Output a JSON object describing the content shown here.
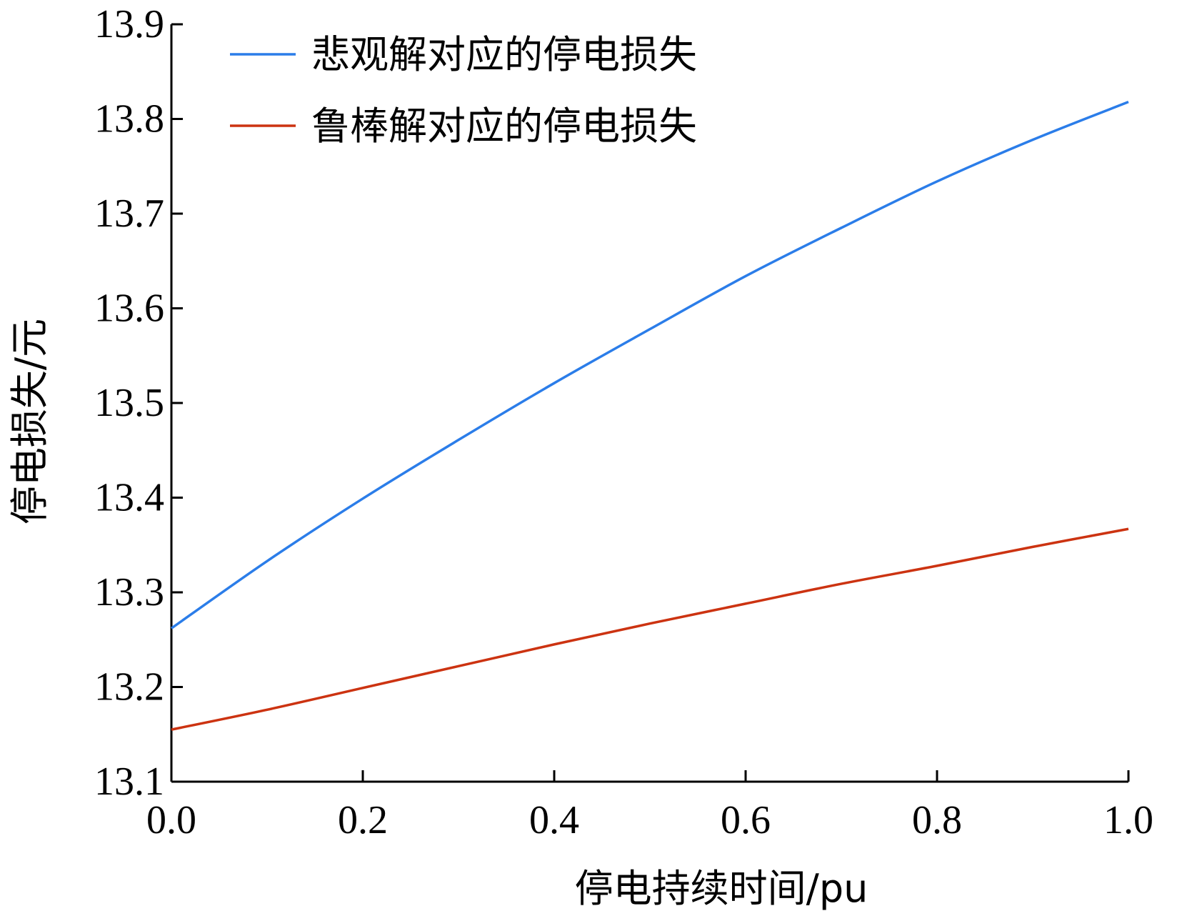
{
  "chart_data": {
    "type": "line",
    "xlabel": "停电持续时间/pu",
    "ylabel": "停电损失/元",
    "xlim": [
      0.0,
      1.0
    ],
    "ylim": [
      13.1,
      13.9
    ],
    "xticks": [
      0.0,
      0.2,
      0.4,
      0.6,
      0.8,
      1.0
    ],
    "xtick_labels": [
      "0.0",
      "0.2",
      "0.4",
      "0.6",
      "0.8",
      "1.0"
    ],
    "yticks": [
      13.1,
      13.2,
      13.3,
      13.4,
      13.5,
      13.6,
      13.7,
      13.8,
      13.9
    ],
    "ytick_labels": [
      "13.1",
      "13.2",
      "13.3",
      "13.4",
      "13.5",
      "13.6",
      "13.7",
      "13.8",
      "13.9"
    ],
    "grid": false,
    "legend_position": "top-left",
    "x": [
      0.0,
      0.1,
      0.2,
      0.3,
      0.4,
      0.5,
      0.6,
      0.7,
      0.8,
      0.9,
      1.0
    ],
    "series": [
      {
        "name": "悲观解对应的停电损失",
        "color": "#2b7de9",
        "values": [
          13.262,
          13.333,
          13.399,
          13.461,
          13.521,
          13.578,
          13.634,
          13.685,
          13.734,
          13.778,
          13.818
        ]
      },
      {
        "name": "鲁棒解对应的停电损失",
        "color": "#cc3311",
        "values": [
          13.155,
          13.176,
          13.199,
          13.222,
          13.245,
          13.267,
          13.288,
          13.309,
          13.328,
          13.348,
          13.367
        ]
      }
    ]
  }
}
